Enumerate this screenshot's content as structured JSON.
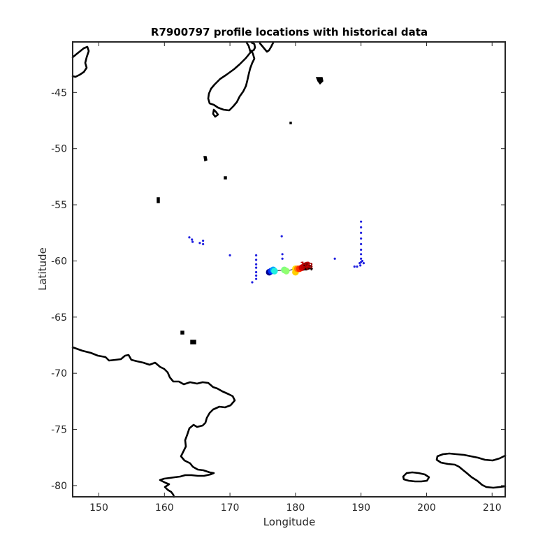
{
  "chart_data": {
    "type": "scatter",
    "title": "R7900797 profile locations with historical data",
    "xlabel": "Longitude",
    "ylabel": "Latitude",
    "xlim": [
      146,
      212
    ],
    "ylim": [
      -81,
      -40.5
    ],
    "xticks": [
      150,
      160,
      170,
      180,
      190,
      200,
      210
    ],
    "yticks": [
      -45,
      -50,
      -55,
      -60,
      -65,
      -70,
      -75,
      -80
    ],
    "grid": false,
    "series": [
      {
        "role": "historical",
        "color": "#1f1fe0",
        "points": [
          [
            163.8,
            -57.9
          ],
          [
            164.2,
            -58.1
          ],
          [
            164.3,
            -58.3
          ],
          [
            165.4,
            -58.4
          ],
          [
            165.9,
            -58.2
          ],
          [
            165.9,
            -58.5
          ],
          [
            170.0,
            -59.5
          ],
          [
            173.4,
            -61.9
          ],
          [
            174.0,
            -59.5
          ],
          [
            174.0,
            -59.9
          ],
          [
            174.0,
            -60.3
          ],
          [
            174.0,
            -60.6
          ],
          [
            174.0,
            -61.0
          ],
          [
            174.0,
            -61.3
          ],
          [
            174.0,
            -61.6
          ],
          [
            177.9,
            -57.8
          ],
          [
            178.0,
            -59.4
          ],
          [
            178.0,
            -59.8
          ],
          [
            186.0,
            -59.8
          ],
          [
            189.0,
            -60.5
          ],
          [
            189.4,
            -60.5
          ],
          [
            189.9,
            -60.4
          ],
          [
            190.0,
            -56.5
          ],
          [
            190.0,
            -57.0
          ],
          [
            190.0,
            -57.5
          ],
          [
            190.0,
            -58.0
          ],
          [
            190.0,
            -58.5
          ],
          [
            190.0,
            -59.0
          ],
          [
            190.0,
            -59.4
          ],
          [
            190.0,
            -59.8
          ],
          [
            190.0,
            -60.1
          ],
          [
            190.4,
            -60.2
          ],
          [
            189.8,
            -60.2
          ],
          [
            190.2,
            -60.0
          ]
        ]
      },
      {
        "role": "profiles",
        "points": [
          [
            176.0,
            -61.0
          ],
          [
            176.3,
            -60.9
          ],
          [
            176.6,
            -60.8
          ],
          [
            176.8,
            -60.9
          ],
          [
            178.3,
            -60.8
          ],
          [
            178.6,
            -60.9
          ],
          [
            180.0,
            -60.7
          ],
          [
            180.0,
            -61.0
          ],
          [
            180.3,
            -60.7
          ],
          [
            180.6,
            -60.7
          ],
          [
            181.0,
            -60.6
          ],
          [
            181.3,
            -60.5
          ],
          [
            181.6,
            -60.4
          ],
          [
            181.8,
            -60.5
          ]
        ],
        "colors": [
          "#00008f",
          "#0030ff",
          "#00a0ff",
          "#20f0e0",
          "#80ff80",
          "#90ff70",
          "#ffe000",
          "#ffd000",
          "#ff8000",
          "#ff3000",
          "#d00000",
          "#c00000",
          "#a00000",
          "#800000"
        ]
      }
    ],
    "annotations": [
      {
        "text": "14",
        "x": 181.9,
        "y": -60.6,
        "color": "#1a0000"
      },
      {
        "text": "12",
        "x": 181.5,
        "y": -60.3,
        "color": "#c00000"
      },
      {
        "text": "13",
        "x": 181.9,
        "y": -60.4,
        "color": "#a00000"
      }
    ]
  }
}
